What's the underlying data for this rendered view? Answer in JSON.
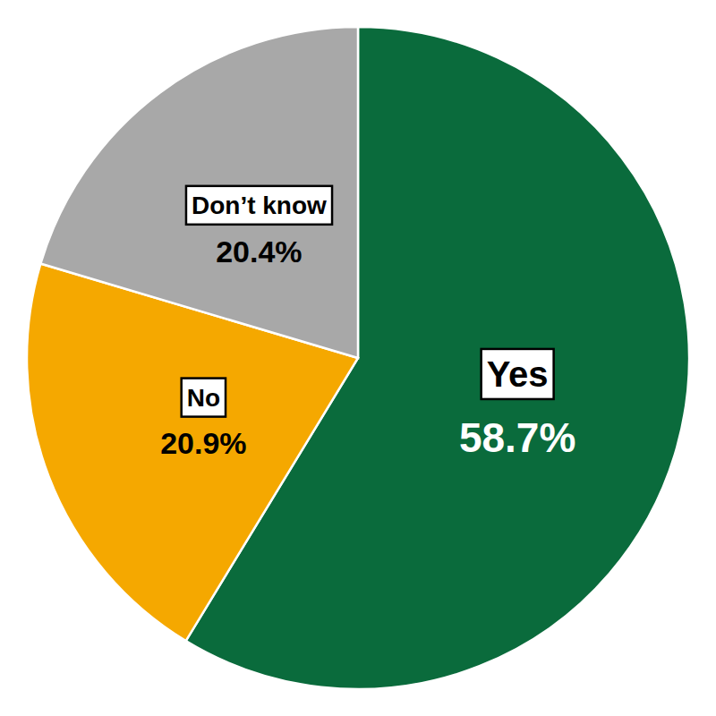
{
  "chart_data": {
    "type": "pie",
    "categories": [
      "Yes",
      "No",
      "Don’t know"
    ],
    "values": [
      58.7,
      20.9,
      20.4
    ],
    "value_labels": [
      "58.7%",
      "20.9%",
      "20.4%"
    ],
    "colors": [
      "#0a6b3c",
      "#f5a800",
      "#a8a8a8"
    ],
    "data_labels": true
  }
}
